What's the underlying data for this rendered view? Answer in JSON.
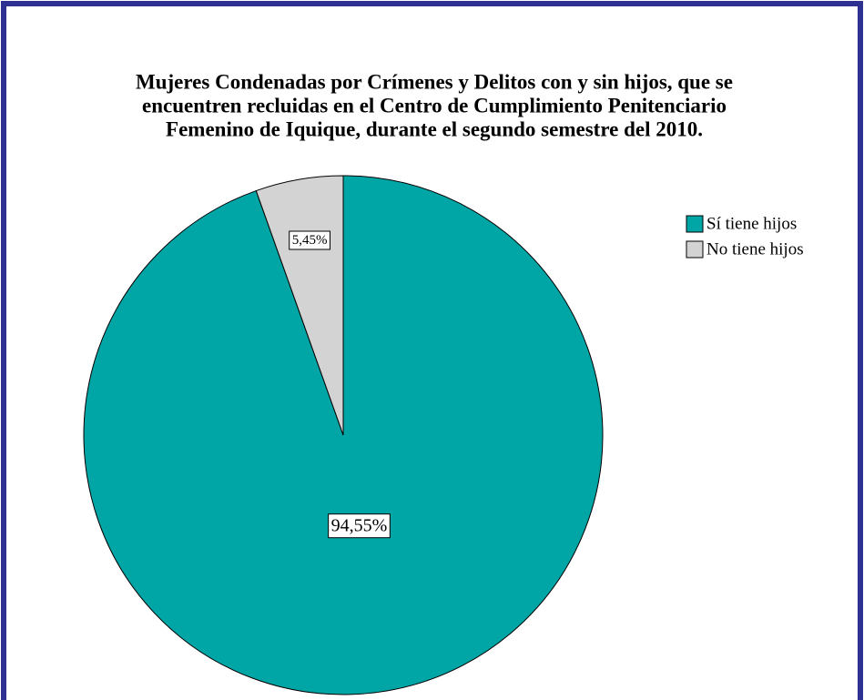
{
  "chart_data": {
    "type": "pie",
    "title": [
      "Mujeres Condenadas por Crímenes y Delitos con y sin hijos, que se",
      "encuentren recluidas en el Centro de Cumplimiento Penitenciario",
      "Femenino de Iquique, durante el segundo semestre del 2010."
    ],
    "categories": [
      "Sí tiene hijos",
      "No tiene hijos"
    ],
    "values": [
      94.55,
      5.45
    ],
    "value_labels": [
      "94,55%",
      "5,45%"
    ],
    "colors": [
      "#00a5a5",
      "#d3d3d3"
    ],
    "legend": "top-right"
  }
}
